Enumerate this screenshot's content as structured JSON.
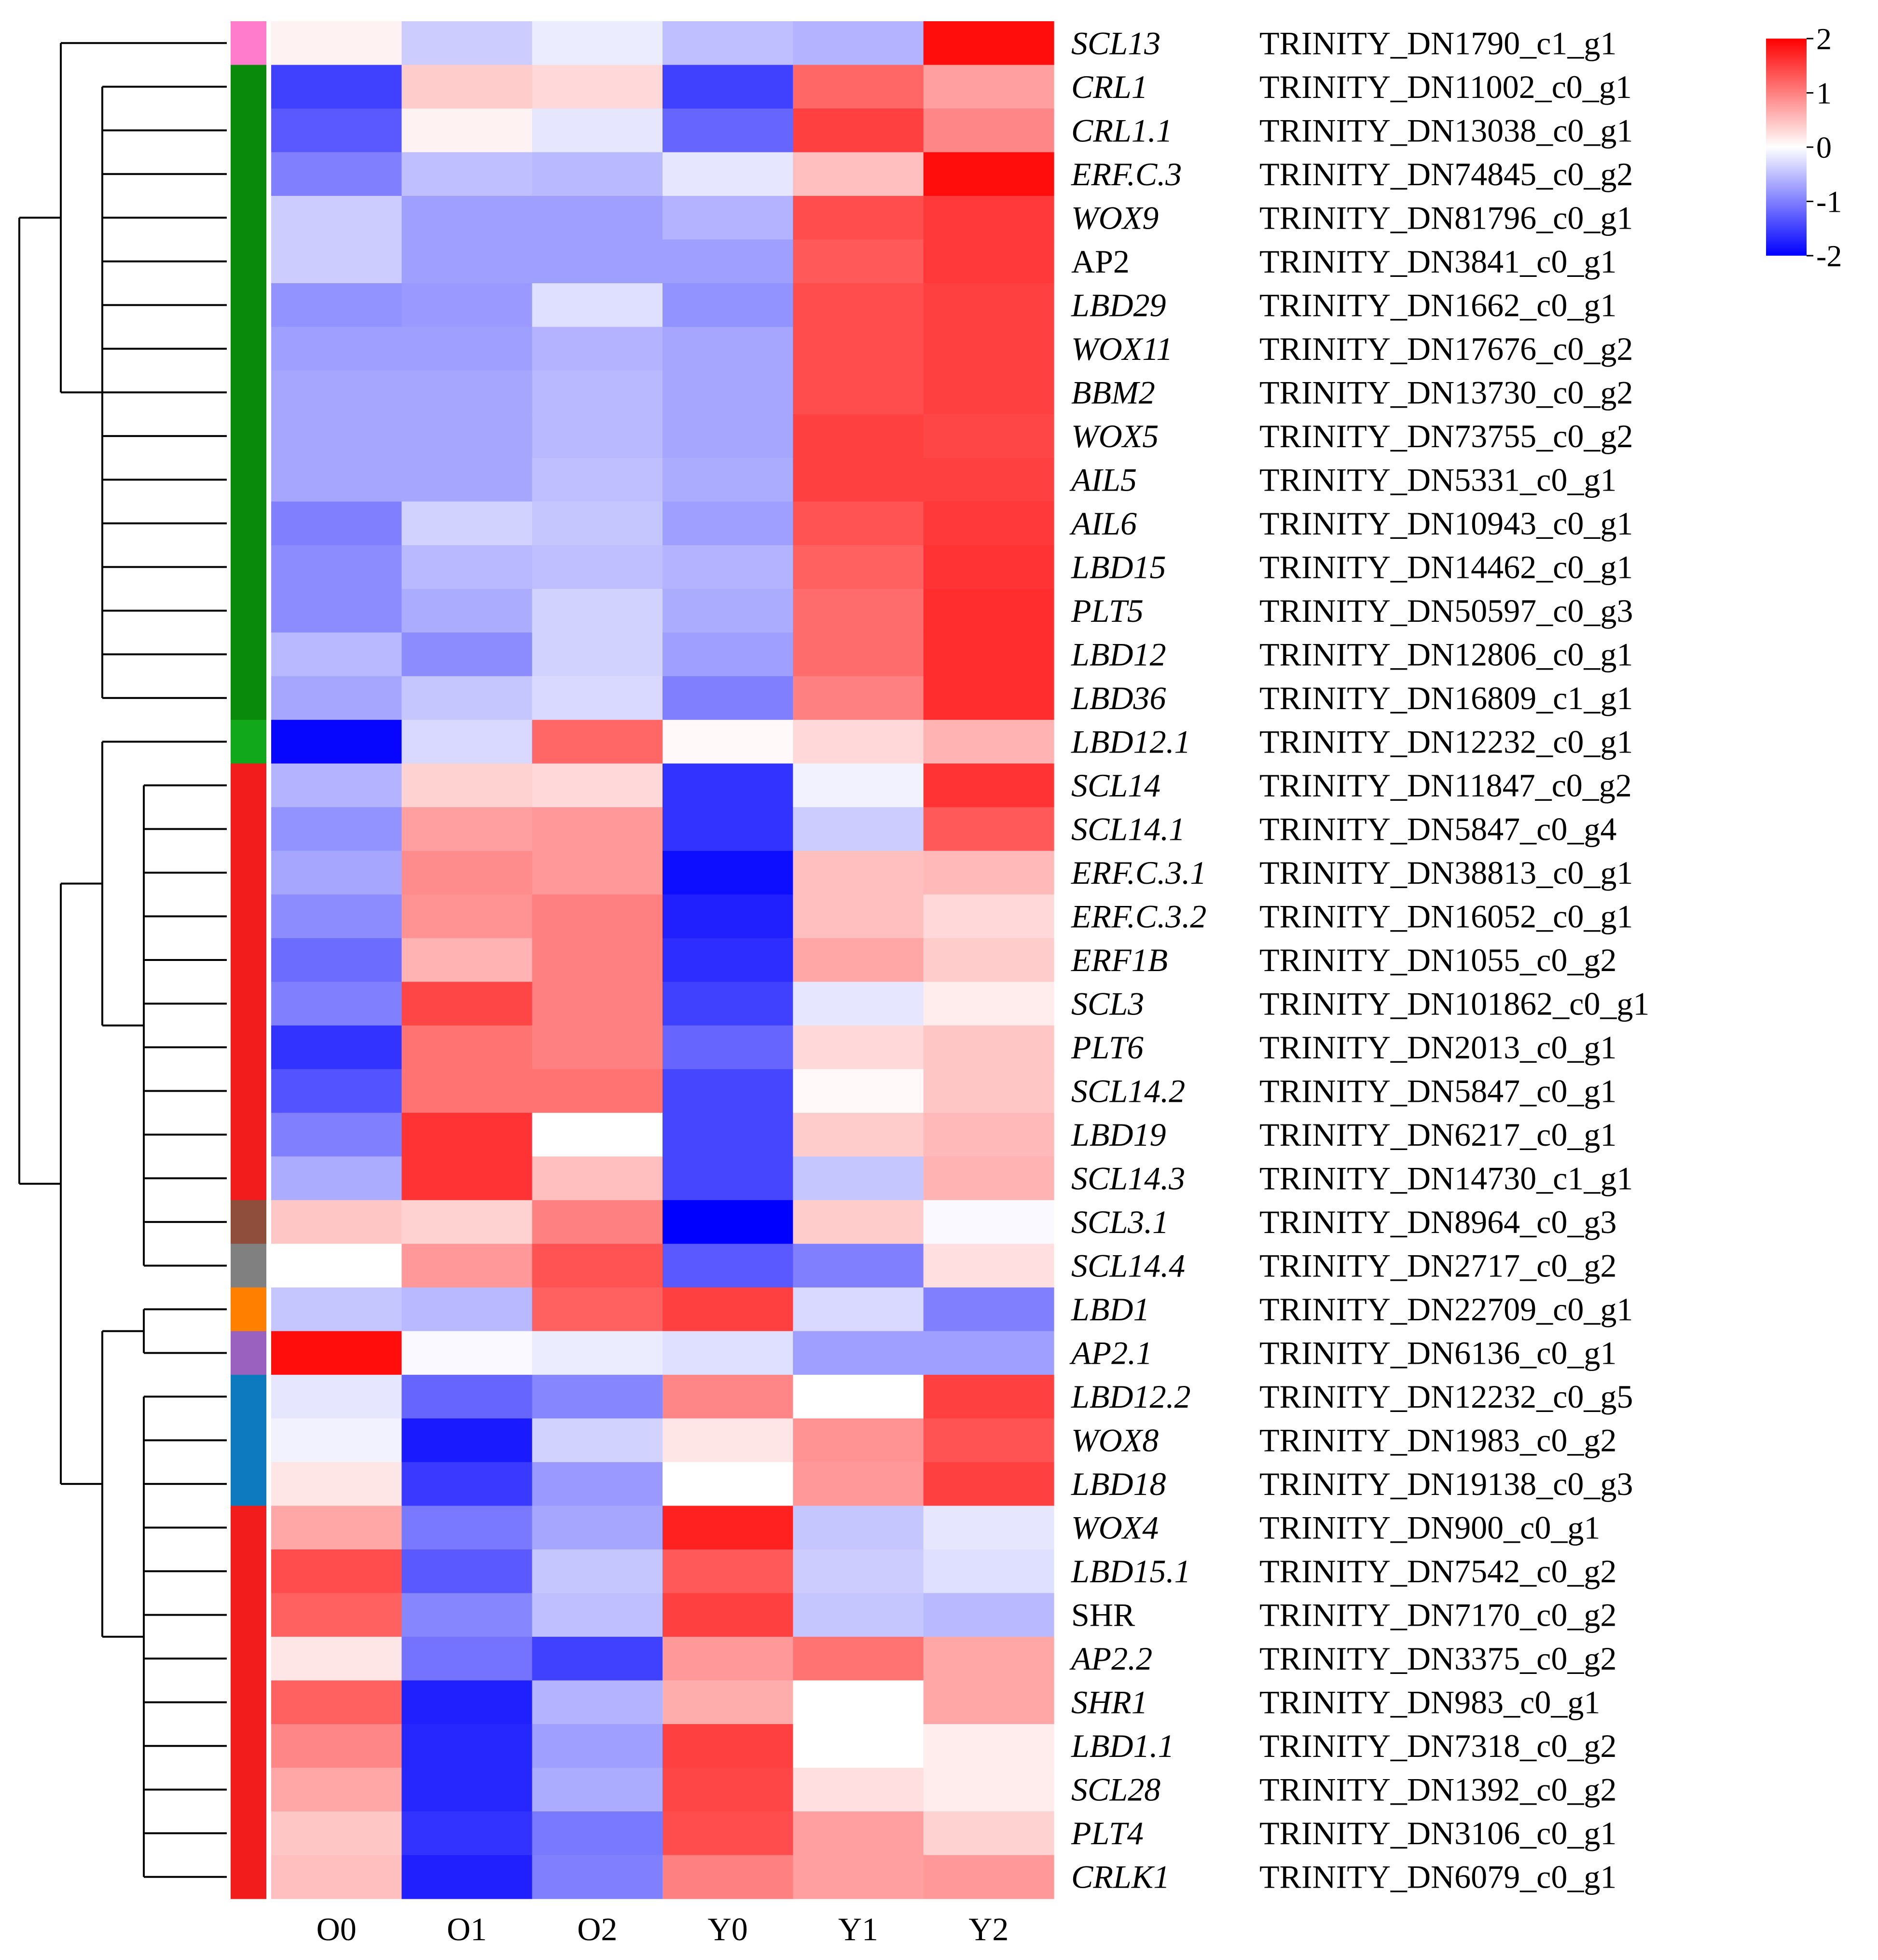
{
  "chart_data": {
    "type": "heatmap",
    "title": "",
    "columns": [
      "O0",
      "O1",
      "O2",
      "Y0",
      "Y1",
      "Y2"
    ],
    "color_scale": {
      "min": -2,
      "max": 2,
      "ticks": [
        "2",
        "1",
        "0",
        "-1",
        "-2"
      ],
      "colors": {
        "low": "#0000ff",
        "mid": "#ffffff",
        "high": "#ff0000"
      }
    },
    "rows": [
      {
        "gene": "SCL13",
        "italic": true,
        "id": "TRINITY_DN1790_c1_g1",
        "cluster": "pink",
        "values": [
          0.1,
          -0.4,
          -0.15,
          -0.5,
          -0.6,
          1.9
        ]
      },
      {
        "gene": "CRL1",
        "italic": true,
        "id": "TRINITY_DN11002_c0_g1",
        "cluster": "green",
        "values": [
          -1.5,
          0.4,
          0.3,
          -1.5,
          1.2,
          0.75
        ]
      },
      {
        "gene": "CRL1.1",
        "italic": true,
        "id": "TRINITY_DN13038_c0_g1",
        "cluster": "green",
        "values": [
          -1.3,
          0.1,
          -0.2,
          -1.2,
          1.5,
          0.95
        ]
      },
      {
        "gene": "ERF.C.3",
        "italic": true,
        "id": "TRINITY_DN74845_c0_g2",
        "cluster": "green",
        "values": [
          -1.0,
          -0.5,
          -0.55,
          -0.2,
          0.5,
          1.9
        ]
      },
      {
        "gene": "WOX9",
        "italic": true,
        "id": "TRINITY_DN81796_c0_g1",
        "cluster": "green",
        "values": [
          -0.4,
          -0.75,
          -0.75,
          -0.6,
          1.4,
          1.55
        ]
      },
      {
        "gene": "AP2",
        "italic": false,
        "id": "TRINITY_DN3841_c0_g1",
        "cluster": "green",
        "values": [
          -0.4,
          -0.75,
          -0.75,
          -0.75,
          1.3,
          1.55
        ]
      },
      {
        "gene": "LBD29",
        "italic": true,
        "id": "TRINITY_DN1662_c0_g1",
        "cluster": "green",
        "values": [
          -0.85,
          -0.8,
          -0.25,
          -0.85,
          1.4,
          1.5
        ]
      },
      {
        "gene": "WOX11",
        "italic": true,
        "id": "TRINITY_DN17676_c0_g2",
        "cluster": "green",
        "values": [
          -0.75,
          -0.75,
          -0.6,
          -0.7,
          1.4,
          1.5
        ]
      },
      {
        "gene": "BBM2",
        "italic": true,
        "id": "TRINITY_DN13730_c0_g2",
        "cluster": "green",
        "values": [
          -0.7,
          -0.7,
          -0.55,
          -0.7,
          1.4,
          1.5
        ]
      },
      {
        "gene": "WOX5",
        "italic": true,
        "id": "TRINITY_DN73755_c0_g2",
        "cluster": "green",
        "values": [
          -0.7,
          -0.7,
          -0.55,
          -0.7,
          1.5,
          1.45
        ]
      },
      {
        "gene": "AIL5",
        "italic": true,
        "id": "TRINITY_DN5331_c0_g1",
        "cluster": "green",
        "values": [
          -0.7,
          -0.7,
          -0.5,
          -0.65,
          1.5,
          1.5
        ]
      },
      {
        "gene": "AIL6",
        "italic": true,
        "id": "TRINITY_DN10943_c0_g1",
        "cluster": "green",
        "values": [
          -1.0,
          -0.35,
          -0.45,
          -0.75,
          1.35,
          1.55
        ]
      },
      {
        "gene": "LBD15",
        "italic": true,
        "id": "TRINITY_DN14462_c0_g1",
        "cluster": "green",
        "values": [
          -0.9,
          -0.55,
          -0.5,
          -0.6,
          1.25,
          1.6
        ]
      },
      {
        "gene": "PLT5",
        "italic": true,
        "id": "TRINITY_DN50597_c0_g3",
        "cluster": "green",
        "values": [
          -0.9,
          -0.65,
          -0.35,
          -0.65,
          1.15,
          1.65
        ]
      },
      {
        "gene": "LBD12",
        "italic": true,
        "id": "TRINITY_DN12806_c0_g1",
        "cluster": "green",
        "values": [
          -0.55,
          -0.9,
          -0.35,
          -0.75,
          1.15,
          1.65
        ]
      },
      {
        "gene": "LBD36",
        "italic": true,
        "id": "TRINITY_DN16809_c1_g1",
        "cluster": "green",
        "values": [
          -0.7,
          -0.45,
          -0.3,
          -1.0,
          1.0,
          1.65
        ]
      },
      {
        "gene": "LBD12.1",
        "italic": true,
        "id": "TRINITY_DN12232_c0_g1",
        "cluster": "light-green",
        "values": [
          -1.95,
          -0.3,
          1.2,
          0.05,
          0.3,
          0.6
        ]
      },
      {
        "gene": "SCL14",
        "italic": true,
        "id": "TRINITY_DN11847_c0_g2",
        "cluster": "red",
        "values": [
          -0.6,
          0.35,
          0.3,
          -1.6,
          -0.1,
          1.6
        ]
      },
      {
        "gene": "SCL14.1",
        "italic": true,
        "id": "TRINITY_DN5847_c0_g4",
        "cluster": "red",
        "values": [
          -0.85,
          0.75,
          0.8,
          -1.6,
          -0.4,
          1.3
        ]
      },
      {
        "gene": "ERF.C.3.1",
        "italic": true,
        "id": "TRINITY_DN38813_c0_g1",
        "cluster": "red",
        "values": [
          -0.7,
          0.9,
          0.8,
          -1.9,
          0.5,
          0.55
        ]
      },
      {
        "gene": "ERF.C.3.2",
        "italic": true,
        "id": "TRINITY_DN16052_c0_g1",
        "cluster": "red",
        "values": [
          -0.9,
          0.85,
          1.0,
          -1.75,
          0.5,
          0.3
        ]
      },
      {
        "gene": "ERF1B",
        "italic": true,
        "id": "TRINITY_DN1055_c0_g2",
        "cluster": "red",
        "values": [
          -1.15,
          0.6,
          1.0,
          -1.65,
          0.7,
          0.4
        ]
      },
      {
        "gene": "SCL3",
        "italic": true,
        "id": "TRINITY_DN101862_c0_g1",
        "cluster": "red",
        "values": [
          -1.0,
          1.45,
          1.0,
          -1.5,
          -0.2,
          0.15
        ]
      },
      {
        "gene": "PLT6",
        "italic": true,
        "id": "TRINITY_DN2013_c0_g1",
        "cluster": "red",
        "values": [
          -1.6,
          1.1,
          1.0,
          -1.2,
          0.3,
          0.45
        ]
      },
      {
        "gene": "SCL14.2",
        "italic": true,
        "id": "TRINITY_DN5847_c0_g1",
        "cluster": "red",
        "values": [
          -1.35,
          1.1,
          1.1,
          -1.45,
          0.05,
          0.45
        ]
      },
      {
        "gene": "LBD19",
        "italic": true,
        "id": "TRINITY_DN6217_c0_g1",
        "cluster": "red",
        "values": [
          -1.0,
          1.6,
          0.0,
          -1.45,
          0.4,
          0.55
        ]
      },
      {
        "gene": "SCL14.3",
        "italic": true,
        "id": "TRINITY_DN14730_c1_g1",
        "cluster": "red",
        "values": [
          -0.65,
          1.6,
          0.5,
          -1.45,
          -0.45,
          0.6
        ]
      },
      {
        "gene": "SCL3.1",
        "italic": true,
        "id": "TRINITY_DN8964_c0_g3",
        "cluster": "brown",
        "values": [
          0.45,
          0.35,
          1.0,
          -2.0,
          0.4,
          -0.05
        ]
      },
      {
        "gene": "SCL14.4",
        "italic": true,
        "id": "TRINITY_DN2717_c0_g2",
        "cluster": "grey",
        "values": [
          0.0,
          0.8,
          1.35,
          -1.3,
          -1.0,
          0.25
        ]
      },
      {
        "gene": "LBD1",
        "italic": true,
        "id": "TRINITY_DN22709_c0_g1",
        "cluster": "orange",
        "values": [
          -0.45,
          -0.55,
          1.25,
          1.5,
          -0.3,
          -1.0
        ]
      },
      {
        "gene": "AP2.1",
        "italic": true,
        "id": "TRINITY_DN6136_c0_g1",
        "cluster": "purple",
        "values": [
          1.9,
          -0.05,
          -0.15,
          -0.25,
          -0.75,
          -0.75
        ]
      },
      {
        "gene": "LBD12.2",
        "italic": true,
        "id": "TRINITY_DN12232_c0_g5",
        "cluster": "blue",
        "values": [
          -0.2,
          -1.2,
          -0.95,
          0.95,
          0.0,
          1.5
        ]
      },
      {
        "gene": "WOX8",
        "italic": true,
        "id": "TRINITY_DN1983_c0_g2",
        "cluster": "blue",
        "values": [
          -0.1,
          -1.8,
          -0.35,
          0.2,
          0.85,
          1.35
        ]
      },
      {
        "gene": "LBD18",
        "italic": true,
        "id": "TRINITY_DN19138_c0_g3",
        "cluster": "blue",
        "values": [
          0.2,
          -1.55,
          -0.8,
          0.0,
          0.8,
          1.5
        ]
      },
      {
        "gene": "WOX4",
        "italic": true,
        "id": "TRINITY_DN900_c0_g1",
        "cluster": "red",
        "values": [
          0.7,
          -1.05,
          -0.7,
          1.75,
          -0.45,
          -0.2
        ]
      },
      {
        "gene": "LBD15.1",
        "italic": true,
        "id": "TRINITY_DN7542_c0_g2",
        "cluster": "red",
        "values": [
          1.4,
          -1.3,
          -0.45,
          1.3,
          -0.4,
          -0.25
        ]
      },
      {
        "gene": "SHR",
        "italic": false,
        "id": "TRINITY_DN7170_c0_g2",
        "cluster": "red",
        "values": [
          1.25,
          -0.95,
          -0.5,
          1.5,
          -0.45,
          -0.55
        ]
      },
      {
        "gene": "AP2.2",
        "italic": true,
        "id": "TRINITY_DN3375_c0_g2",
        "cluster": "red",
        "values": [
          0.2,
          -1.1,
          -1.5,
          0.8,
          1.1,
          0.7
        ]
      },
      {
        "gene": "SHR1",
        "italic": true,
        "id": "TRINITY_DN983_c0_g1",
        "cluster": "red",
        "values": [
          1.25,
          -1.75,
          -0.6,
          0.65,
          0.0,
          0.7
        ]
      },
      {
        "gene": "LBD1.1",
        "italic": true,
        "id": "TRINITY_DN7318_c0_g2",
        "cluster": "red",
        "values": [
          0.95,
          -1.7,
          -0.75,
          1.5,
          0.0,
          0.15
        ]
      },
      {
        "gene": "SCL28",
        "italic": true,
        "id": "TRINITY_DN1392_c0_g2",
        "cluster": "red",
        "values": [
          0.7,
          -1.7,
          -0.65,
          1.45,
          0.25,
          0.15
        ]
      },
      {
        "gene": "PLT4",
        "italic": true,
        "id": "TRINITY_DN3106_c0_g1",
        "cluster": "red",
        "values": [
          0.45,
          -1.6,
          -1.05,
          1.4,
          0.75,
          0.35
        ]
      },
      {
        "gene": "CRLK1",
        "italic": true,
        "id": "TRINITY_DN6079_c0_g1",
        "cluster": "red",
        "values": [
          0.5,
          -1.75,
          -1.0,
          1.0,
          0.75,
          0.8
        ]
      }
    ],
    "cluster_colors": {
      "pink": "#ff7bcc",
      "green": "#0a8a0a",
      "light-green": "#12a81c",
      "red": "#f21c1c",
      "brown": "#8f4e3c",
      "grey": "#808080",
      "orange": "#ff7f00",
      "purple": "#9a62be",
      "blue": "#0d7ac0"
    },
    "dendrogram": {
      "left": [
        "SCL13",
        [
          "CRL1",
          "CRL1.1",
          "ERF.C.3",
          "WOX9",
          "AP2",
          "LBD29",
          "WOX11",
          "BBM2",
          "WOX5",
          "AIL5",
          "AIL6",
          "LBD15",
          "PLT5",
          "LBD12",
          "LBD36"
        ]
      ],
      "right": [
        [
          "LBD12.1",
          [
            "SCL14",
            "SCL14.1",
            "ERF.C.3.1",
            "ERF.C.3.2",
            "ERF1B",
            "SCL3",
            "PLT6",
            "SCL14.2",
            "LBD19",
            "SCL14.3",
            "SCL3.1",
            "SCL14.4"
          ]
        ],
        [
          [
            "LBD1",
            "AP2.1"
          ],
          [
            "LBD12.2",
            "WOX8",
            "LBD18",
            "WOX4",
            "LBD15.1",
            "SHR",
            "AP2.2",
            "SHR1",
            "LBD1.1",
            "SCL28",
            "PLT4",
            "CRLK1"
          ]
        ]
      ]
    }
  }
}
